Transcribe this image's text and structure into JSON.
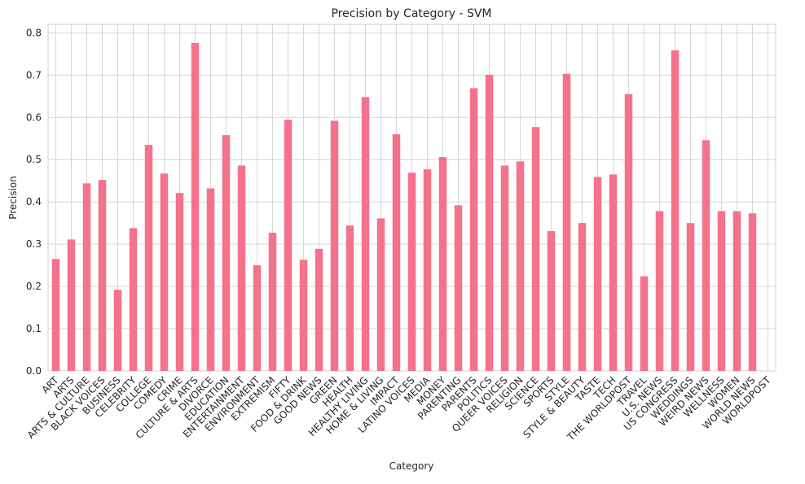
{
  "chart_data": {
    "type": "bar",
    "title": "Precision by Category - SVM",
    "xlabel": "Category",
    "ylabel": "Precision",
    "ylim": [
      0,
      0.82
    ],
    "yticks": [
      "0.0",
      "0.1",
      "0.2",
      "0.3",
      "0.4",
      "0.5",
      "0.6",
      "0.7",
      "0.8"
    ],
    "grid": true,
    "bar_color": "#f4728b",
    "categories": [
      "ART",
      "ARTS",
      "ARTS & CULTURE",
      "BLACK VOICES",
      "BUSINESS",
      "CELEBRITY",
      "COLLEGE",
      "COMEDY",
      "CRIME",
      "CULTURE & ARTS",
      "DIVORCE",
      "EDUCATION",
      "ENTERTAINMENT",
      "ENVIRONMENT",
      "EXTREMISM",
      "FIFTY",
      "FOOD & DRINK",
      "GOOD NEWS",
      "GREEN",
      "HEALTH",
      "HEALTHY LIVING",
      "HOME & LIVING",
      "IMPACT",
      "LATINO VOICES",
      "MEDIA",
      "MONEY",
      "PARENTING",
      "PARENTS",
      "POLITICS",
      "QUEER VOICES",
      "RELIGION",
      "SCIENCE",
      "SPORTS",
      "STYLE",
      "STYLE & BEAUTY",
      "TASTE",
      "TECH",
      "THE WORLDPOST",
      "TRAVEL",
      "U.S. NEWS",
      "US CONGRESS",
      "WEDDINGS",
      "WEIRD NEWS",
      "WELLNESS",
      "WOMEN",
      "WORLD NEWS",
      "WORLDPOST"
    ],
    "values": [
      0.265,
      0.311,
      0.444,
      0.452,
      0.192,
      0.338,
      0.535,
      0.467,
      0.421,
      0.776,
      0.432,
      0.558,
      0.486,
      0.25,
      0.327,
      0.594,
      0.263,
      0.289,
      0.592,
      0.344,
      0.648,
      0.361,
      0.56,
      0.469,
      0.477,
      0.506,
      0.392,
      0.669,
      0.701,
      0.486,
      0.496,
      0.577,
      0.331,
      0.703,
      0.35,
      0.459,
      0.465,
      0.655,
      0.224,
      0.378,
      0.759,
      0.35,
      0.546,
      0.378,
      0.378,
      0.373,
      0.0
    ]
  }
}
